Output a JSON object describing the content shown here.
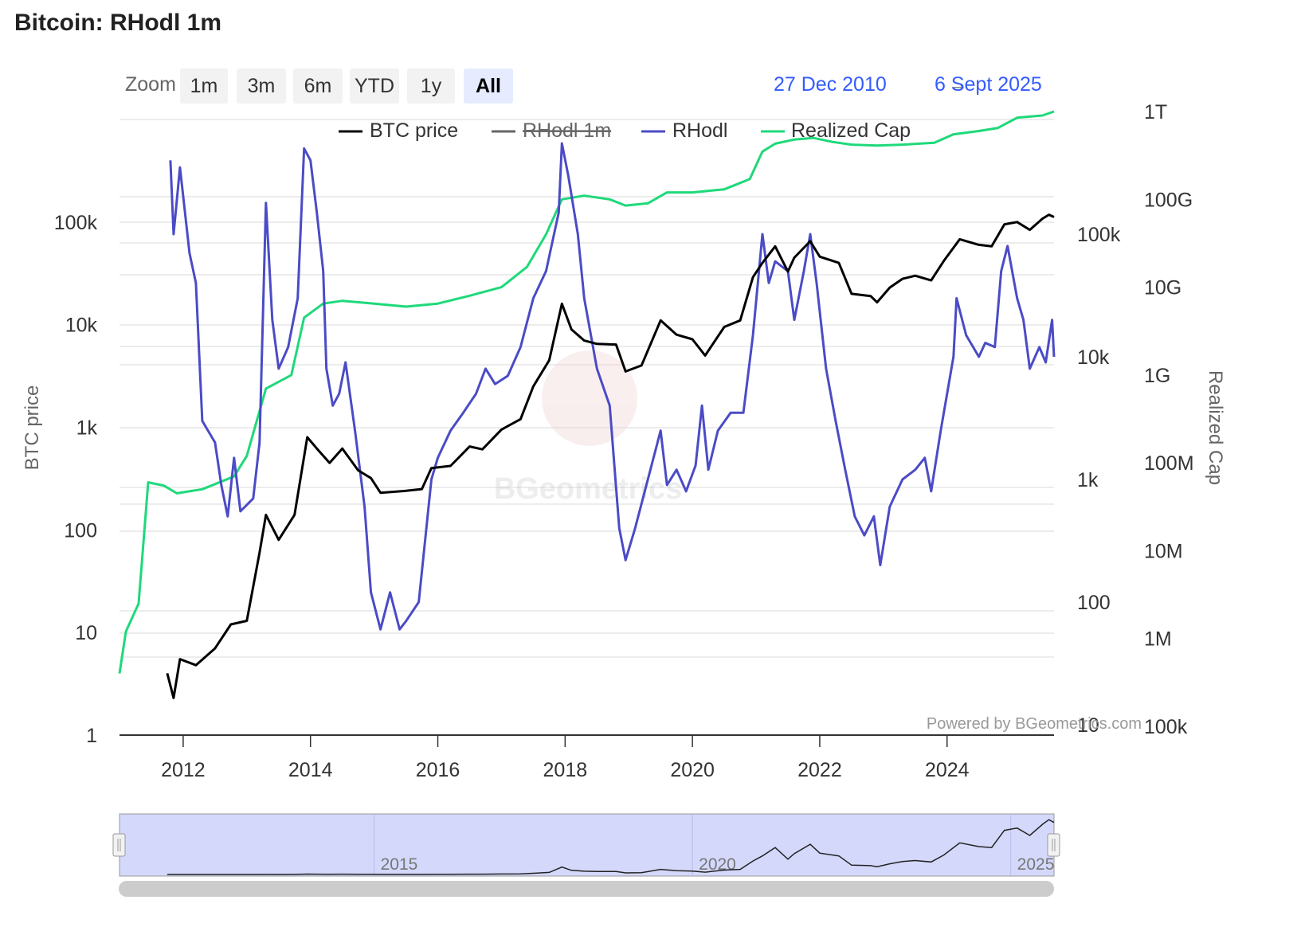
{
  "title": "Bitcoin: RHodl 1m",
  "zoom": {
    "label": "Zoom",
    "buttons": [
      "1m",
      "3m",
      "6m",
      "YTD",
      "1y",
      "All"
    ],
    "active": "All"
  },
  "range": {
    "from": "27 Dec 2010",
    "arrow": "→",
    "to": "6 Sept 2025"
  },
  "watermark": "BGeometrics",
  "credit": "Powered by BGeometrics.com",
  "colors": {
    "btc": "#000000",
    "rhodl1m": "#666666",
    "rhodl": "#4b4bc6",
    "realized": "#1ed97a",
    "accent": "#335cff"
  },
  "chart_data": {
    "type": "line",
    "x_range": [
      2011.0,
      2025.68
    ],
    "x_ticks": [
      "2012",
      "2014",
      "2016",
      "2018",
      "2020",
      "2022",
      "2024"
    ],
    "axes": {
      "btc_price": {
        "label": "BTC price",
        "scale": "log",
        "range": [
          1,
          1000000
        ],
        "ticks": [
          "1",
          "10",
          "100",
          "1k",
          "10k",
          "100k"
        ]
      },
      "rhodl": {
        "label": "",
        "scale": "log",
        "range": [
          10,
          1000000
        ],
        "ticks": [
          "10",
          "100",
          "1k",
          "10k",
          "100k"
        ]
      },
      "realized_cap": {
        "label": "Realized Cap",
        "scale": "log",
        "range": [
          100000,
          1000000000000
        ],
        "ticks": [
          "100k",
          "1M",
          "10M",
          "100M",
          "1G",
          "10G",
          "100G",
          "1T"
        ]
      }
    },
    "legend": [
      "BTC price",
      "RHodl 1m",
      "RHodl",
      "Realized Cap"
    ],
    "series": [
      {
        "name": "BTC price",
        "axis": "btc_price",
        "hidden": false,
        "points": [
          [
            2011.75,
            4
          ],
          [
            2011.85,
            2.3
          ],
          [
            2011.95,
            5.5
          ],
          [
            2012.2,
            4.8
          ],
          [
            2012.5,
            7
          ],
          [
            2012.75,
            12
          ],
          [
            2013.0,
            13
          ],
          [
            2013.2,
            60
          ],
          [
            2013.3,
            140
          ],
          [
            2013.5,
            80
          ],
          [
            2013.75,
            140
          ],
          [
            2013.95,
            800
          ],
          [
            2014.1,
            620
          ],
          [
            2014.3,
            450
          ],
          [
            2014.5,
            620
          ],
          [
            2014.75,
            380
          ],
          [
            2014.95,
            320
          ],
          [
            2015.1,
            230
          ],
          [
            2015.5,
            240
          ],
          [
            2015.75,
            250
          ],
          [
            2015.9,
            400
          ],
          [
            2016.2,
            420
          ],
          [
            2016.5,
            650
          ],
          [
            2016.7,
            610
          ],
          [
            2017.0,
            950
          ],
          [
            2017.3,
            1200
          ],
          [
            2017.5,
            2500
          ],
          [
            2017.75,
            4500
          ],
          [
            2017.95,
            16000
          ],
          [
            2018.1,
            9000
          ],
          [
            2018.3,
            7000
          ],
          [
            2018.5,
            6500
          ],
          [
            2018.8,
            6400
          ],
          [
            2018.95,
            3500
          ],
          [
            2019.2,
            4000
          ],
          [
            2019.5,
            11000
          ],
          [
            2019.75,
            8000
          ],
          [
            2020.0,
            7200
          ],
          [
            2020.2,
            5000
          ],
          [
            2020.5,
            9500
          ],
          [
            2020.75,
            11000
          ],
          [
            2020.95,
            29000
          ],
          [
            2021.1,
            40000
          ],
          [
            2021.3,
            58000
          ],
          [
            2021.5,
            33000
          ],
          [
            2021.6,
            45000
          ],
          [
            2021.85,
            65000
          ],
          [
            2022.0,
            46000
          ],
          [
            2022.3,
            40000
          ],
          [
            2022.5,
            20000
          ],
          [
            2022.8,
            19000
          ],
          [
            2022.9,
            16500
          ],
          [
            2023.1,
            23000
          ],
          [
            2023.3,
            28000
          ],
          [
            2023.5,
            30000
          ],
          [
            2023.75,
            27000
          ],
          [
            2023.95,
            42000
          ],
          [
            2024.2,
            68000
          ],
          [
            2024.5,
            60000
          ],
          [
            2024.7,
            58000
          ],
          [
            2024.9,
            95000
          ],
          [
            2025.1,
            100000
          ],
          [
            2025.3,
            84000
          ],
          [
            2025.5,
            108000
          ],
          [
            2025.6,
            118000
          ],
          [
            2025.68,
            112000
          ]
        ]
      },
      {
        "name": "RHodl 1m",
        "axis": "rhodl",
        "hidden": true,
        "points": []
      },
      {
        "name": "RHodl",
        "axis": "rhodl",
        "hidden": false,
        "points": [
          [
            2011.8,
            400000
          ],
          [
            2011.85,
            100000
          ],
          [
            2011.95,
            350000
          ],
          [
            2012.1,
            70000
          ],
          [
            2012.2,
            40000
          ],
          [
            2012.3,
            3000
          ],
          [
            2012.5,
            2000
          ],
          [
            2012.6,
            900
          ],
          [
            2012.7,
            500
          ],
          [
            2012.8,
            1500
          ],
          [
            2012.9,
            550
          ],
          [
            2013.1,
            700
          ],
          [
            2013.2,
            2000
          ],
          [
            2013.3,
            180000
          ],
          [
            2013.4,
            20000
          ],
          [
            2013.5,
            8000
          ],
          [
            2013.65,
            12000
          ],
          [
            2013.8,
            30000
          ],
          [
            2013.9,
            500000
          ],
          [
            2014.0,
            400000
          ],
          [
            2014.1,
            150000
          ],
          [
            2014.2,
            50000
          ],
          [
            2014.25,
            8000
          ],
          [
            2014.35,
            4000
          ],
          [
            2014.45,
            5000
          ],
          [
            2014.55,
            9000
          ],
          [
            2014.7,
            2500
          ],
          [
            2014.85,
            600
          ],
          [
            2014.95,
            120
          ],
          [
            2015.1,
            60
          ],
          [
            2015.25,
            120
          ],
          [
            2015.4,
            60
          ],
          [
            2015.5,
            70
          ],
          [
            2015.7,
            100
          ],
          [
            2015.9,
            1000
          ],
          [
            2016.0,
            1500
          ],
          [
            2016.2,
            2500
          ],
          [
            2016.4,
            3500
          ],
          [
            2016.6,
            5000
          ],
          [
            2016.75,
            8000
          ],
          [
            2016.9,
            6000
          ],
          [
            2017.1,
            7000
          ],
          [
            2017.3,
            12000
          ],
          [
            2017.5,
            30000
          ],
          [
            2017.7,
            50000
          ],
          [
            2017.9,
            150000
          ],
          [
            2017.95,
            550000
          ],
          [
            2018.05,
            300000
          ],
          [
            2018.2,
            100000
          ],
          [
            2018.3,
            30000
          ],
          [
            2018.5,
            8000
          ],
          [
            2018.7,
            4000
          ],
          [
            2018.85,
            400
          ],
          [
            2018.95,
            220
          ],
          [
            2019.1,
            400
          ],
          [
            2019.3,
            1000
          ],
          [
            2019.5,
            2500
          ],
          [
            2019.6,
            900
          ],
          [
            2019.75,
            1200
          ],
          [
            2019.9,
            800
          ],
          [
            2020.05,
            1300
          ],
          [
            2020.15,
            4000
          ],
          [
            2020.25,
            1200
          ],
          [
            2020.4,
            2500
          ],
          [
            2020.6,
            3500
          ],
          [
            2020.8,
            3500
          ],
          [
            2020.95,
            15000
          ],
          [
            2021.1,
            100000
          ],
          [
            2021.2,
            40000
          ],
          [
            2021.3,
            60000
          ],
          [
            2021.5,
            50000
          ],
          [
            2021.6,
            20000
          ],
          [
            2021.75,
            50000
          ],
          [
            2021.85,
            100000
          ],
          [
            2021.95,
            40000
          ],
          [
            2022.1,
            8000
          ],
          [
            2022.25,
            3000
          ],
          [
            2022.4,
            1200
          ],
          [
            2022.55,
            500
          ],
          [
            2022.7,
            350
          ],
          [
            2022.85,
            500
          ],
          [
            2022.95,
            200
          ],
          [
            2023.1,
            600
          ],
          [
            2023.3,
            1000
          ],
          [
            2023.5,
            1200
          ],
          [
            2023.65,
            1500
          ],
          [
            2023.75,
            800
          ],
          [
            2023.9,
            2500
          ],
          [
            2024.1,
            10000
          ],
          [
            2024.15,
            30000
          ],
          [
            2024.3,
            15000
          ],
          [
            2024.5,
            10000
          ],
          [
            2024.6,
            13000
          ],
          [
            2024.75,
            12000
          ],
          [
            2024.85,
            50000
          ],
          [
            2024.95,
            80000
          ],
          [
            2025.1,
            30000
          ],
          [
            2025.2,
            20000
          ],
          [
            2025.3,
            8000
          ],
          [
            2025.45,
            12000
          ],
          [
            2025.55,
            9000
          ],
          [
            2025.65,
            20000
          ],
          [
            2025.68,
            10000
          ]
        ]
      },
      {
        "name": "Realized Cap",
        "axis": "realized_cap",
        "hidden": false,
        "points": [
          [
            2011.0,
            400000
          ],
          [
            2011.1,
            1200000
          ],
          [
            2011.3,
            2500000
          ],
          [
            2011.45,
            60000000
          ],
          [
            2011.7,
            55000000
          ],
          [
            2011.9,
            45000000
          ],
          [
            2012.3,
            50000000
          ],
          [
            2012.8,
            70000000
          ],
          [
            2013.0,
            120000000
          ],
          [
            2013.3,
            700000000
          ],
          [
            2013.7,
            1000000000
          ],
          [
            2013.9,
            4500000000
          ],
          [
            2014.2,
            6500000000
          ],
          [
            2014.5,
            7000000000
          ],
          [
            2015.0,
            6500000000
          ],
          [
            2015.5,
            6000000000
          ],
          [
            2016.0,
            6500000000
          ],
          [
            2016.5,
            8000000000
          ],
          [
            2017.0,
            10000000000
          ],
          [
            2017.4,
            17000000000
          ],
          [
            2017.7,
            40000000000
          ],
          [
            2017.95,
            100000000000
          ],
          [
            2018.3,
            110000000000
          ],
          [
            2018.7,
            100000000000
          ],
          [
            2018.95,
            85000000000
          ],
          [
            2019.3,
            90000000000
          ],
          [
            2019.6,
            120000000000
          ],
          [
            2020.0,
            120000000000
          ],
          [
            2020.5,
            130000000000
          ],
          [
            2020.9,
            170000000000
          ],
          [
            2021.1,
            350000000000
          ],
          [
            2021.3,
            430000000000
          ],
          [
            2021.6,
            480000000000
          ],
          [
            2021.9,
            500000000000
          ],
          [
            2022.2,
            450000000000
          ],
          [
            2022.5,
            420000000000
          ],
          [
            2022.9,
            410000000000
          ],
          [
            2023.3,
            420000000000
          ],
          [
            2023.8,
            440000000000
          ],
          [
            2024.1,
            550000000000
          ],
          [
            2024.5,
            600000000000
          ],
          [
            2024.8,
            650000000000
          ],
          [
            2025.1,
            850000000000
          ],
          [
            2025.5,
            900000000000
          ],
          [
            2025.68,
            1000000000000
          ]
        ]
      }
    ],
    "navigator": {
      "labels": [
        "2015",
        "2020",
        "2025"
      ]
    }
  }
}
